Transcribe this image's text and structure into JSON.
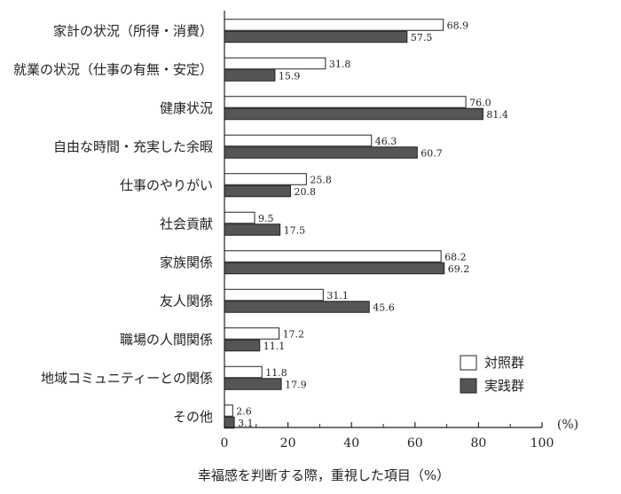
{
  "chart_data": {
    "type": "bar",
    "orientation": "horizontal",
    "categories": [
      "家計の状況（所得・消費）",
      "就業の状況（仕事の有無・安定）",
      "健康状況",
      "自由な時間・充実した余暇",
      "仕事のやりがい",
      "社会貢献",
      "家族関係",
      "友人関係",
      "職場の人間関係",
      "地域コミュニティーとの関係",
      "その他"
    ],
    "series": [
      {
        "name": "対照群",
        "values": [
          68.9,
          31.8,
          76.0,
          46.3,
          25.8,
          9.5,
          68.2,
          31.1,
          17.2,
          11.8,
          2.6
        ],
        "color": "#ffffff"
      },
      {
        "name": "実践群",
        "values": [
          57.5,
          15.9,
          81.4,
          60.7,
          20.8,
          17.5,
          69.2,
          45.6,
          11.1,
          17.9,
          3.1
        ],
        "color": "#555555"
      }
    ],
    "xlabel": "幸福感を判断する際，重視した項目（%）",
    "unit_label": "(%)",
    "xlim": [
      0,
      100
    ],
    "xticks": [
      0,
      20,
      40,
      60,
      80,
      100
    ],
    "legend_position": "right",
    "grid": false
  }
}
